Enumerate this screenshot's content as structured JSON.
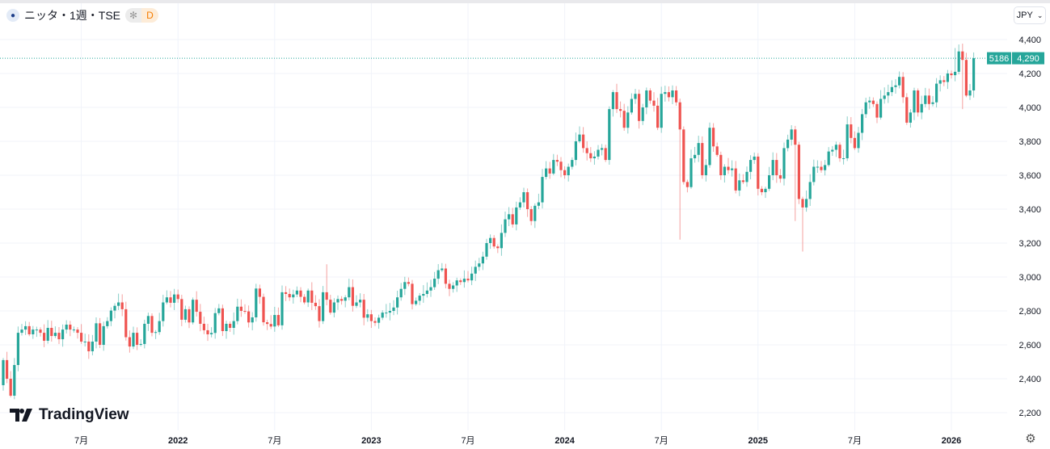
{
  "header": {
    "symbol_title": "ニッタ・1週・TSE",
    "badge_a": "✻",
    "badge_d": "D"
  },
  "currency": {
    "label": "JPY",
    "chevron": "⌄"
  },
  "price_labels": {
    "code": "5186",
    "last": "4,290"
  },
  "logo": {
    "text": "TradingView"
  },
  "colors": {
    "up": "#26a69a",
    "down": "#ef5350",
    "grid": "#f0f3fa",
    "last_line": "#26a69a"
  },
  "chart_data": {
    "type": "candlestick",
    "title": "ニッタ・1週・TSE",
    "interval": "weekly",
    "ylim": [
      2150,
      4450
    ],
    "y_ticks": [
      2200,
      2400,
      2600,
      2800,
      3000,
      3200,
      3400,
      3600,
      3800,
      4000,
      4200,
      4400
    ],
    "y_tick_labels": [
      "2,200",
      "2,400",
      "2,600",
      "2,800",
      "3,000",
      "3,200",
      "3,400",
      "3,600",
      "3,800",
      "4,000",
      "4,200",
      "4,400"
    ],
    "x_ticks": [
      {
        "label": "7月",
        "week": 21
      },
      {
        "label": "2022",
        "week": 47
      },
      {
        "label": "7月",
        "week": 73
      },
      {
        "label": "2023",
        "week": 99
      },
      {
        "label": "7月",
        "week": 125
      },
      {
        "label": "2024",
        "week": 151
      },
      {
        "label": "7月",
        "week": 177
      },
      {
        "label": "2025",
        "week": 203
      },
      {
        "label": "7月",
        "week": 229
      },
      {
        "label": "2026",
        "week": 255
      }
    ],
    "last_price": 4290,
    "first_open": 2362,
    "closes": [
      2510,
      2400,
      2300,
      2481,
      2671,
      2690,
      2710,
      2662,
      2690,
      2690,
      2671,
      2624,
      2700,
      2652,
      2671,
      2633,
      2690,
      2719,
      2690,
      2690,
      2671,
      2619,
      2619,
      2562,
      2619,
      2727,
      2600,
      2710,
      2740,
      2802,
      2830,
      2850,
      2810,
      2645,
      2590,
      2671,
      2600,
      2605,
      2724,
      2770,
      2671,
      2675,
      2740,
      2850,
      2880,
      2848,
      2897,
      2870,
      2748,
      2810,
      2732,
      2866,
      2795,
      2724,
      2686,
      2662,
      2670,
      2787,
      2815,
      2681,
      2724,
      2700,
      2740,
      2825,
      2800,
      2797,
      2732,
      2762,
      2932,
      2883,
      2733,
      2723,
      2708,
      2776,
      2715,
      2910,
      2900,
      2880,
      2897,
      2920,
      2883,
      2850,
      2920,
      2848,
      2828,
      2740,
      2910,
      2866,
      2790,
      2850,
      2870,
      2860,
      2880,
      2940,
      2830,
      2850,
      2866,
      2760,
      2780,
      2740,
      2730,
      2760,
      2790,
      2790,
      2800,
      2820,
      2880,
      2930,
      2970,
      2960,
      2840,
      2860,
      2890,
      2900,
      2920,
      2940,
      2990,
      3040,
      3050,
      2960,
      2930,
      2950,
      2980,
      2970,
      2990,
      2980,
      3020,
      3060,
      3080,
      3120,
      3200,
      3230,
      3180,
      3170,
      3260,
      3340,
      3370,
      3310,
      3410,
      3440,
      3500,
      3400,
      3330,
      3420,
      3440,
      3590,
      3640,
      3610,
      3690,
      3680,
      3630,
      3600,
      3650,
      3690,
      3800,
      3840,
      3760,
      3730,
      3700,
      3710,
      3750,
      3760,
      3690,
      3990,
      4090,
      3990,
      3980,
      3880,
      3970,
      4050,
      4080,
      3920,
      4000,
      4100,
      4040,
      4010,
      3880,
      4080,
      4090,
      4060,
      4100,
      4030,
      3870,
      3560,
      3530,
      3700,
      3720,
      3790,
      3600,
      3660,
      3880,
      3770,
      3720,
      3600,
      3650,
      3630,
      3640,
      3510,
      3570,
      3560,
      3620,
      3690,
      3710,
      3520,
      3500,
      3520,
      3600,
      3690,
      3600,
      3580,
      3760,
      3810,
      3870,
      3780,
      3460,
      3410,
      3460,
      3560,
      3650,
      3650,
      3630,
      3660,
      3740,
      3750,
      3780,
      3700,
      3700,
      3900,
      3820,
      3760,
      3850,
      3960,
      4030,
      4040,
      4020,
      3940,
      4050,
      4070,
      4090,
      4120,
      4130,
      4180,
      4060,
      3910,
      3970,
      4100,
      3970,
      4020,
      4070,
      4020,
      4030,
      4140,
      4160,
      4150,
      4200,
      4190,
      4210,
      4330,
      4280,
      4070,
      4100,
      4290
    ],
    "low_overrides": {
      "0": 2330,
      "2": 2290,
      "182": 3220,
      "213": 3330,
      "215": 3150,
      "258": 3990
    },
    "high_overrides": {
      "257": 4371,
      "68": 2960,
      "87": 3075,
      "256": 4350
    }
  }
}
